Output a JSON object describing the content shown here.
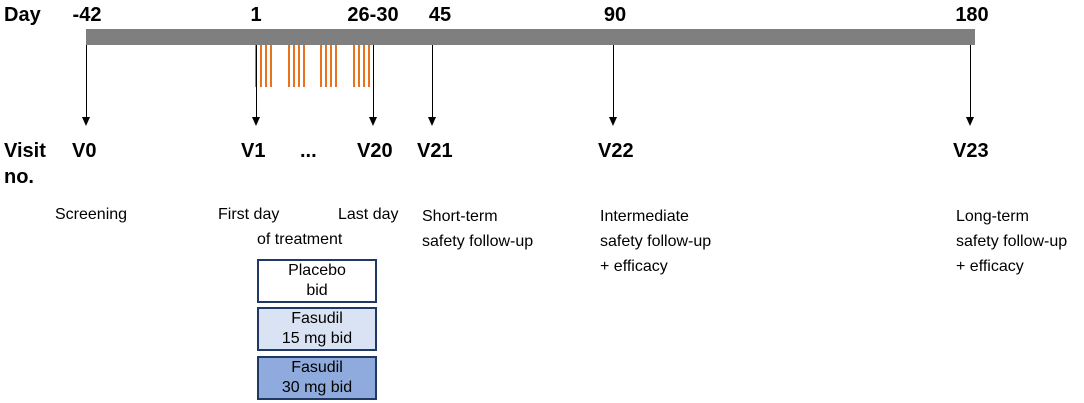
{
  "day_label": "Day",
  "days": [
    "-42",
    "1",
    "26-30",
    "45",
    "90",
    "180"
  ],
  "visit_label": [
    "Visit",
    "no."
  ],
  "visits": [
    "V0",
    "V1",
    "...",
    "V20",
    "V21",
    "V22",
    "V23"
  ],
  "descriptions": {
    "screening": "Screening",
    "first_day": "First day",
    "of_treatment": "of treatment",
    "last_day": "Last day",
    "short_term": [
      "Short-term",
      "safety follow-up"
    ],
    "intermediate": [
      "Intermediate",
      "safety follow-up",
      "+ efficacy"
    ],
    "long_term": [
      "Long-term",
      "safety follow-up",
      "+ efficacy"
    ]
  },
  "treatment_arms": [
    {
      "line1": "Placebo",
      "line2": "bid",
      "fill": "#ffffff"
    },
    {
      "line1": "Fasudil",
      "line2": "15 mg bid",
      "fill": "#dae3f3"
    },
    {
      "line1": "Fasudil",
      "line2": "30 mg bid",
      "fill": "#8faadc"
    }
  ],
  "colors": {
    "timeline": "#7f7f7f",
    "dosing_ticks": "#e8731f",
    "box_border": "#1f3864"
  }
}
